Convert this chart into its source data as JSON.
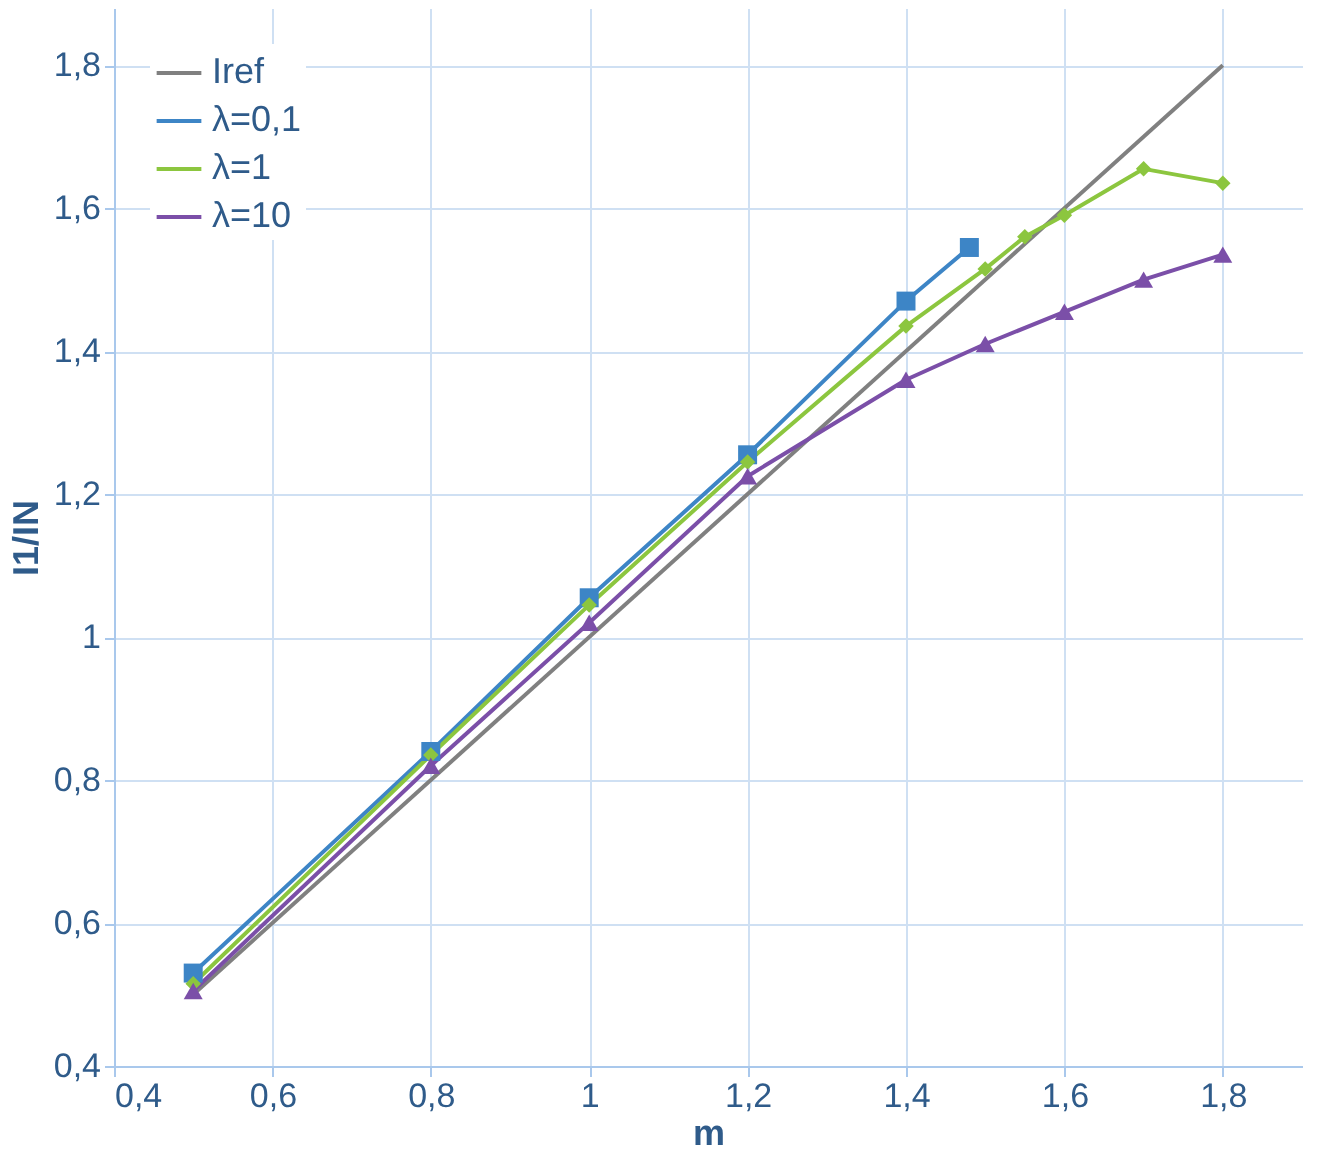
{
  "chart_data": {
    "type": "line",
    "xlabel": "m",
    "ylabel": "I1/IN",
    "grid": true,
    "legend": "top left",
    "xlim": [
      0.4,
      1.9
    ],
    "ylim": [
      0.4,
      1.88
    ],
    "xticks": [
      {
        "value": 0.4,
        "label": "0,4"
      },
      {
        "value": 0.6,
        "label": "0,6"
      },
      {
        "value": 0.8,
        "label": "0,8"
      },
      1,
      {
        "value": 1.2,
        "label": "1,2"
      },
      {
        "value": 1.4,
        "label": "1,4"
      },
      {
        "value": 1.6,
        "label": "1,6"
      },
      {
        "value": 1.8,
        "label": "1,8"
      }
    ],
    "yticks": [
      {
        "value": 0.4,
        "label": "0,4"
      },
      {
        "value": 0.6,
        "label": "0,6"
      },
      {
        "value": 0.8,
        "label": "0,8"
      },
      1,
      {
        "value": 1.2,
        "label": "1,2"
      },
      {
        "value": 1.4,
        "label": "1,4"
      },
      {
        "value": 1.6,
        "label": "1,6"
      },
      {
        "value": 1.8,
        "label": "1,8"
      }
    ],
    "series": [
      {
        "name": "Iref",
        "color": "#808080",
        "marker": "none",
        "x": [
          0.5,
          1.8
        ],
        "values": [
          0.5,
          1.8
        ]
      },
      {
        "name": "λ=0,1",
        "color": "#3d85c6",
        "marker": "square",
        "x": [
          0.5,
          0.8,
          1,
          1.2,
          1.4,
          1.48
        ],
        "values": [
          0.53,
          0.84,
          1.055,
          1.255,
          1.47,
          1.545
        ]
      },
      {
        "name": "λ=1",
        "color": "#8cc63f",
        "marker": "diamond",
        "x": [
          0.5,
          0.8,
          1,
          1.2,
          1.4,
          1.5,
          1.55,
          1.6,
          1.7,
          1.8
        ],
        "values": [
          0.515,
          0.835,
          1.045,
          1.245,
          1.435,
          1.515,
          1.56,
          1.59,
          1.655,
          1.635
        ]
      },
      {
        "name": "λ=10",
        "color": "#7b4fa8",
        "marker": "triangle",
        "x": [
          0.5,
          0.8,
          1,
          1.2,
          1.4,
          1.5,
          1.6,
          1.7,
          1.8
        ],
        "values": [
          0.505,
          0.82,
          1.02,
          1.225,
          1.36,
          1.41,
          1.455,
          1.5,
          1.535
        ]
      }
    ]
  }
}
